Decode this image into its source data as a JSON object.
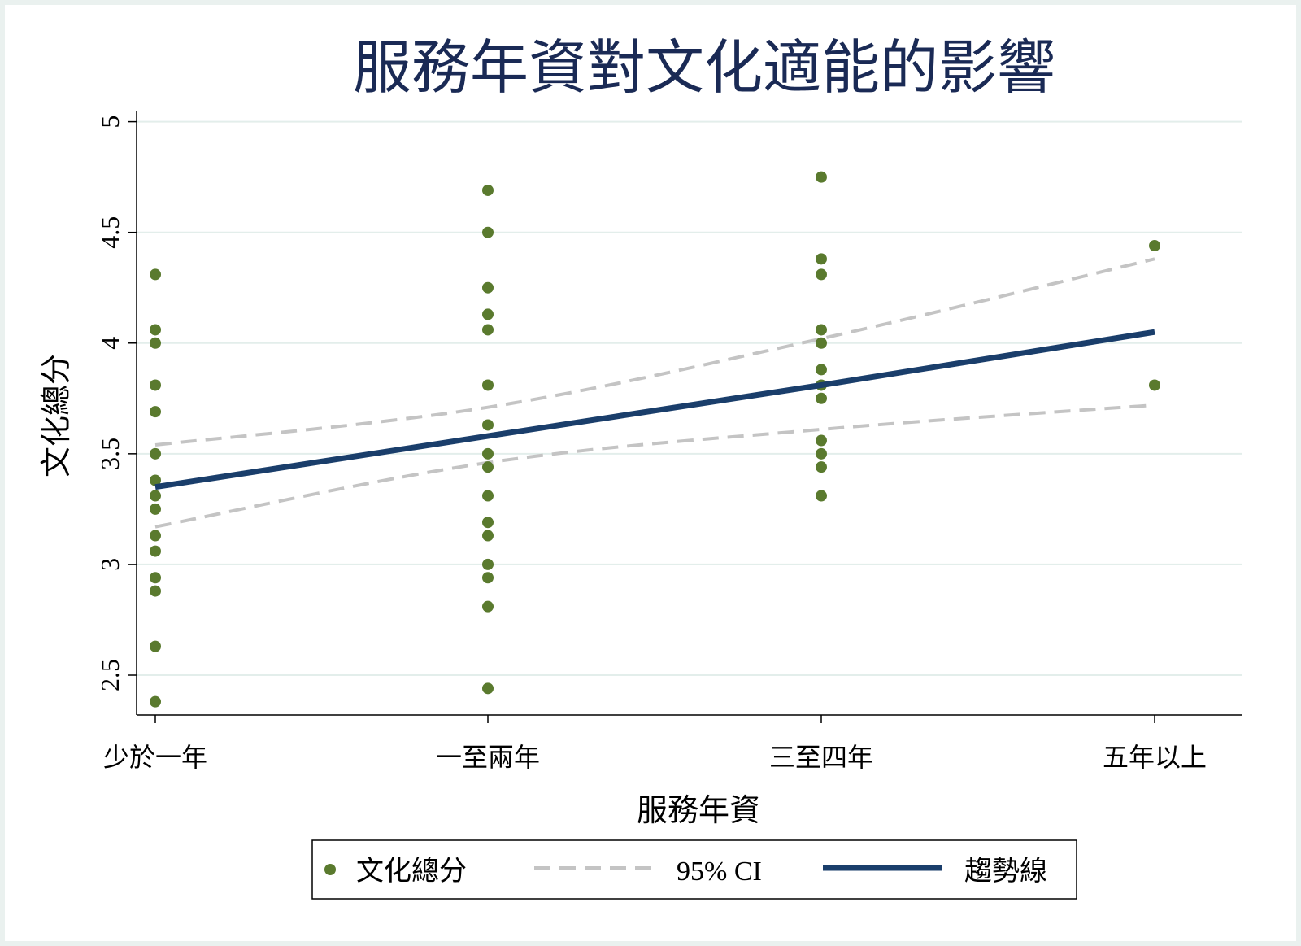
{
  "chart_data": {
    "type": "scatter",
    "title": "服務年資對文化適能的影響",
    "xlabel": "服務年資",
    "ylabel": "文化總分",
    "categories": [
      "少於一年",
      "一至兩年",
      "三至四年",
      "五年以上"
    ],
    "yticks": [
      "2.5",
      "3",
      "3.5",
      "4",
      "4.5",
      "5"
    ],
    "ylim": [
      2.32,
      5.05
    ],
    "grid": true,
    "legend_position": "bottom",
    "colors": {
      "points": "#5a7a2e",
      "trend": "#1a3e6b",
      "ci": "#c4c4c4",
      "title": "#1a2a55",
      "grid": "#e3eeeb"
    },
    "series": [
      {
        "name": "文化總分",
        "kind": "scatter",
        "points": [
          {
            "x": "少於一年",
            "y": 4.31
          },
          {
            "x": "少於一年",
            "y": 4.06
          },
          {
            "x": "少於一年",
            "y": 4.0
          },
          {
            "x": "少於一年",
            "y": 3.81
          },
          {
            "x": "少於一年",
            "y": 3.69
          },
          {
            "x": "少於一年",
            "y": 3.5
          },
          {
            "x": "少於一年",
            "y": 3.38
          },
          {
            "x": "少於一年",
            "y": 3.31
          },
          {
            "x": "少於一年",
            "y": 3.25
          },
          {
            "x": "少於一年",
            "y": 3.13
          },
          {
            "x": "少於一年",
            "y": 3.06
          },
          {
            "x": "少於一年",
            "y": 2.94
          },
          {
            "x": "少於一年",
            "y": 2.88
          },
          {
            "x": "少於一年",
            "y": 2.63
          },
          {
            "x": "少於一年",
            "y": 2.38
          },
          {
            "x": "一至兩年",
            "y": 4.69
          },
          {
            "x": "一至兩年",
            "y": 4.5
          },
          {
            "x": "一至兩年",
            "y": 4.25
          },
          {
            "x": "一至兩年",
            "y": 4.13
          },
          {
            "x": "一至兩年",
            "y": 4.06
          },
          {
            "x": "一至兩年",
            "y": 3.81
          },
          {
            "x": "一至兩年",
            "y": 3.63
          },
          {
            "x": "一至兩年",
            "y": 3.5
          },
          {
            "x": "一至兩年",
            "y": 3.44
          },
          {
            "x": "一至兩年",
            "y": 3.31
          },
          {
            "x": "一至兩年",
            "y": 3.19
          },
          {
            "x": "一至兩年",
            "y": 3.13
          },
          {
            "x": "一至兩年",
            "y": 3.0
          },
          {
            "x": "一至兩年",
            "y": 2.94
          },
          {
            "x": "一至兩年",
            "y": 2.81
          },
          {
            "x": "一至兩年",
            "y": 2.44
          },
          {
            "x": "三至四年",
            "y": 4.75
          },
          {
            "x": "三至四年",
            "y": 4.38
          },
          {
            "x": "三至四年",
            "y": 4.31
          },
          {
            "x": "三至四年",
            "y": 4.06
          },
          {
            "x": "三至四年",
            "y": 4.0
          },
          {
            "x": "三至四年",
            "y": 3.88
          },
          {
            "x": "三至四年",
            "y": 3.81
          },
          {
            "x": "三至四年",
            "y": 3.75
          },
          {
            "x": "三至四年",
            "y": 3.56
          },
          {
            "x": "三至四年",
            "y": 3.5
          },
          {
            "x": "三至四年",
            "y": 3.44
          },
          {
            "x": "三至四年",
            "y": 3.31
          },
          {
            "x": "五年以上",
            "y": 4.44
          },
          {
            "x": "五年以上",
            "y": 3.81
          }
        ]
      },
      {
        "name": "95% CI",
        "kind": "band",
        "upper": [
          3.54,
          3.71,
          4.02,
          4.38
        ],
        "lower": [
          3.17,
          3.46,
          3.61,
          3.72
        ]
      },
      {
        "name": "趨勢線",
        "kind": "line",
        "values": [
          3.35,
          3.58,
          3.81,
          4.05
        ]
      }
    ]
  }
}
